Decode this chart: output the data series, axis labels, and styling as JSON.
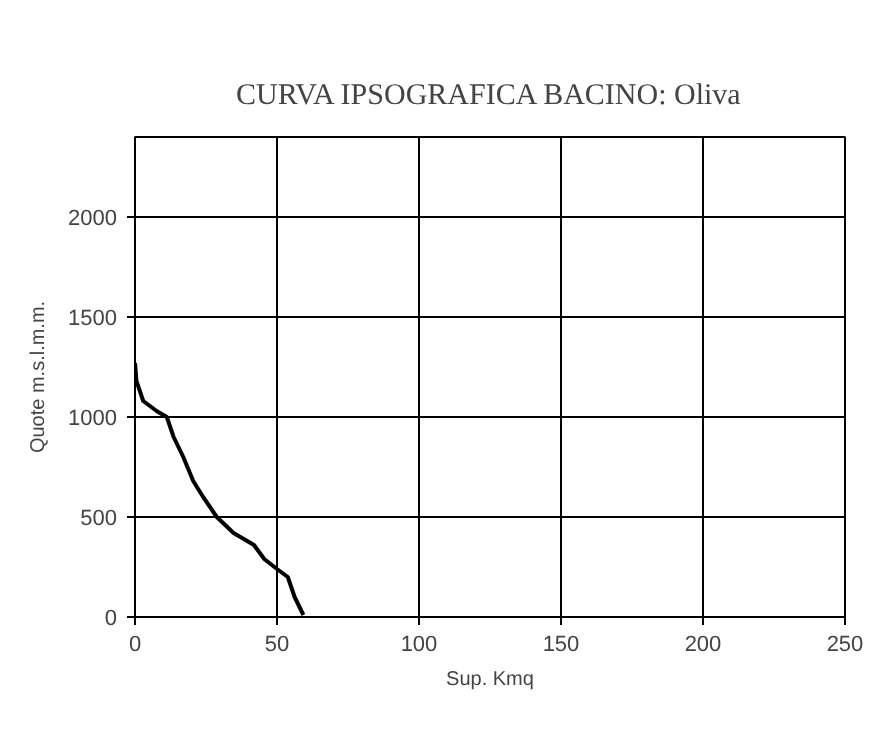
{
  "chart_data": {
    "type": "line",
    "title": "CURVA IPSOGRAFICA BACINO: Oliva",
    "xlabel": "Sup. Kmq",
    "ylabel": "Quote m.s.l.m.m.",
    "x": [
      0,
      0.5,
      2.9,
      7.6,
      11.2,
      13.6,
      17,
      20.5,
      24,
      28.8,
      34.7,
      41.9,
      45.5,
      50,
      53.8,
      56.2,
      59.3
    ],
    "series": [
      {
        "color": "#000000",
        "values": [
          1270,
          1180,
          1080,
          1030,
          1000,
          900,
          800,
          680,
          600,
          500,
          420,
          360,
          290,
          240,
          200,
          100,
          10
        ]
      }
    ],
    "xlim": [
      0,
      250
    ],
    "xticks": [
      0,
      50,
      100,
      150,
      200,
      250
    ],
    "ylim": [
      0,
      2400
    ],
    "yticks": [
      0,
      500,
      1000,
      1500,
      2000
    ],
    "grid": true,
    "marker": "none",
    "line_style": "solid"
  }
}
